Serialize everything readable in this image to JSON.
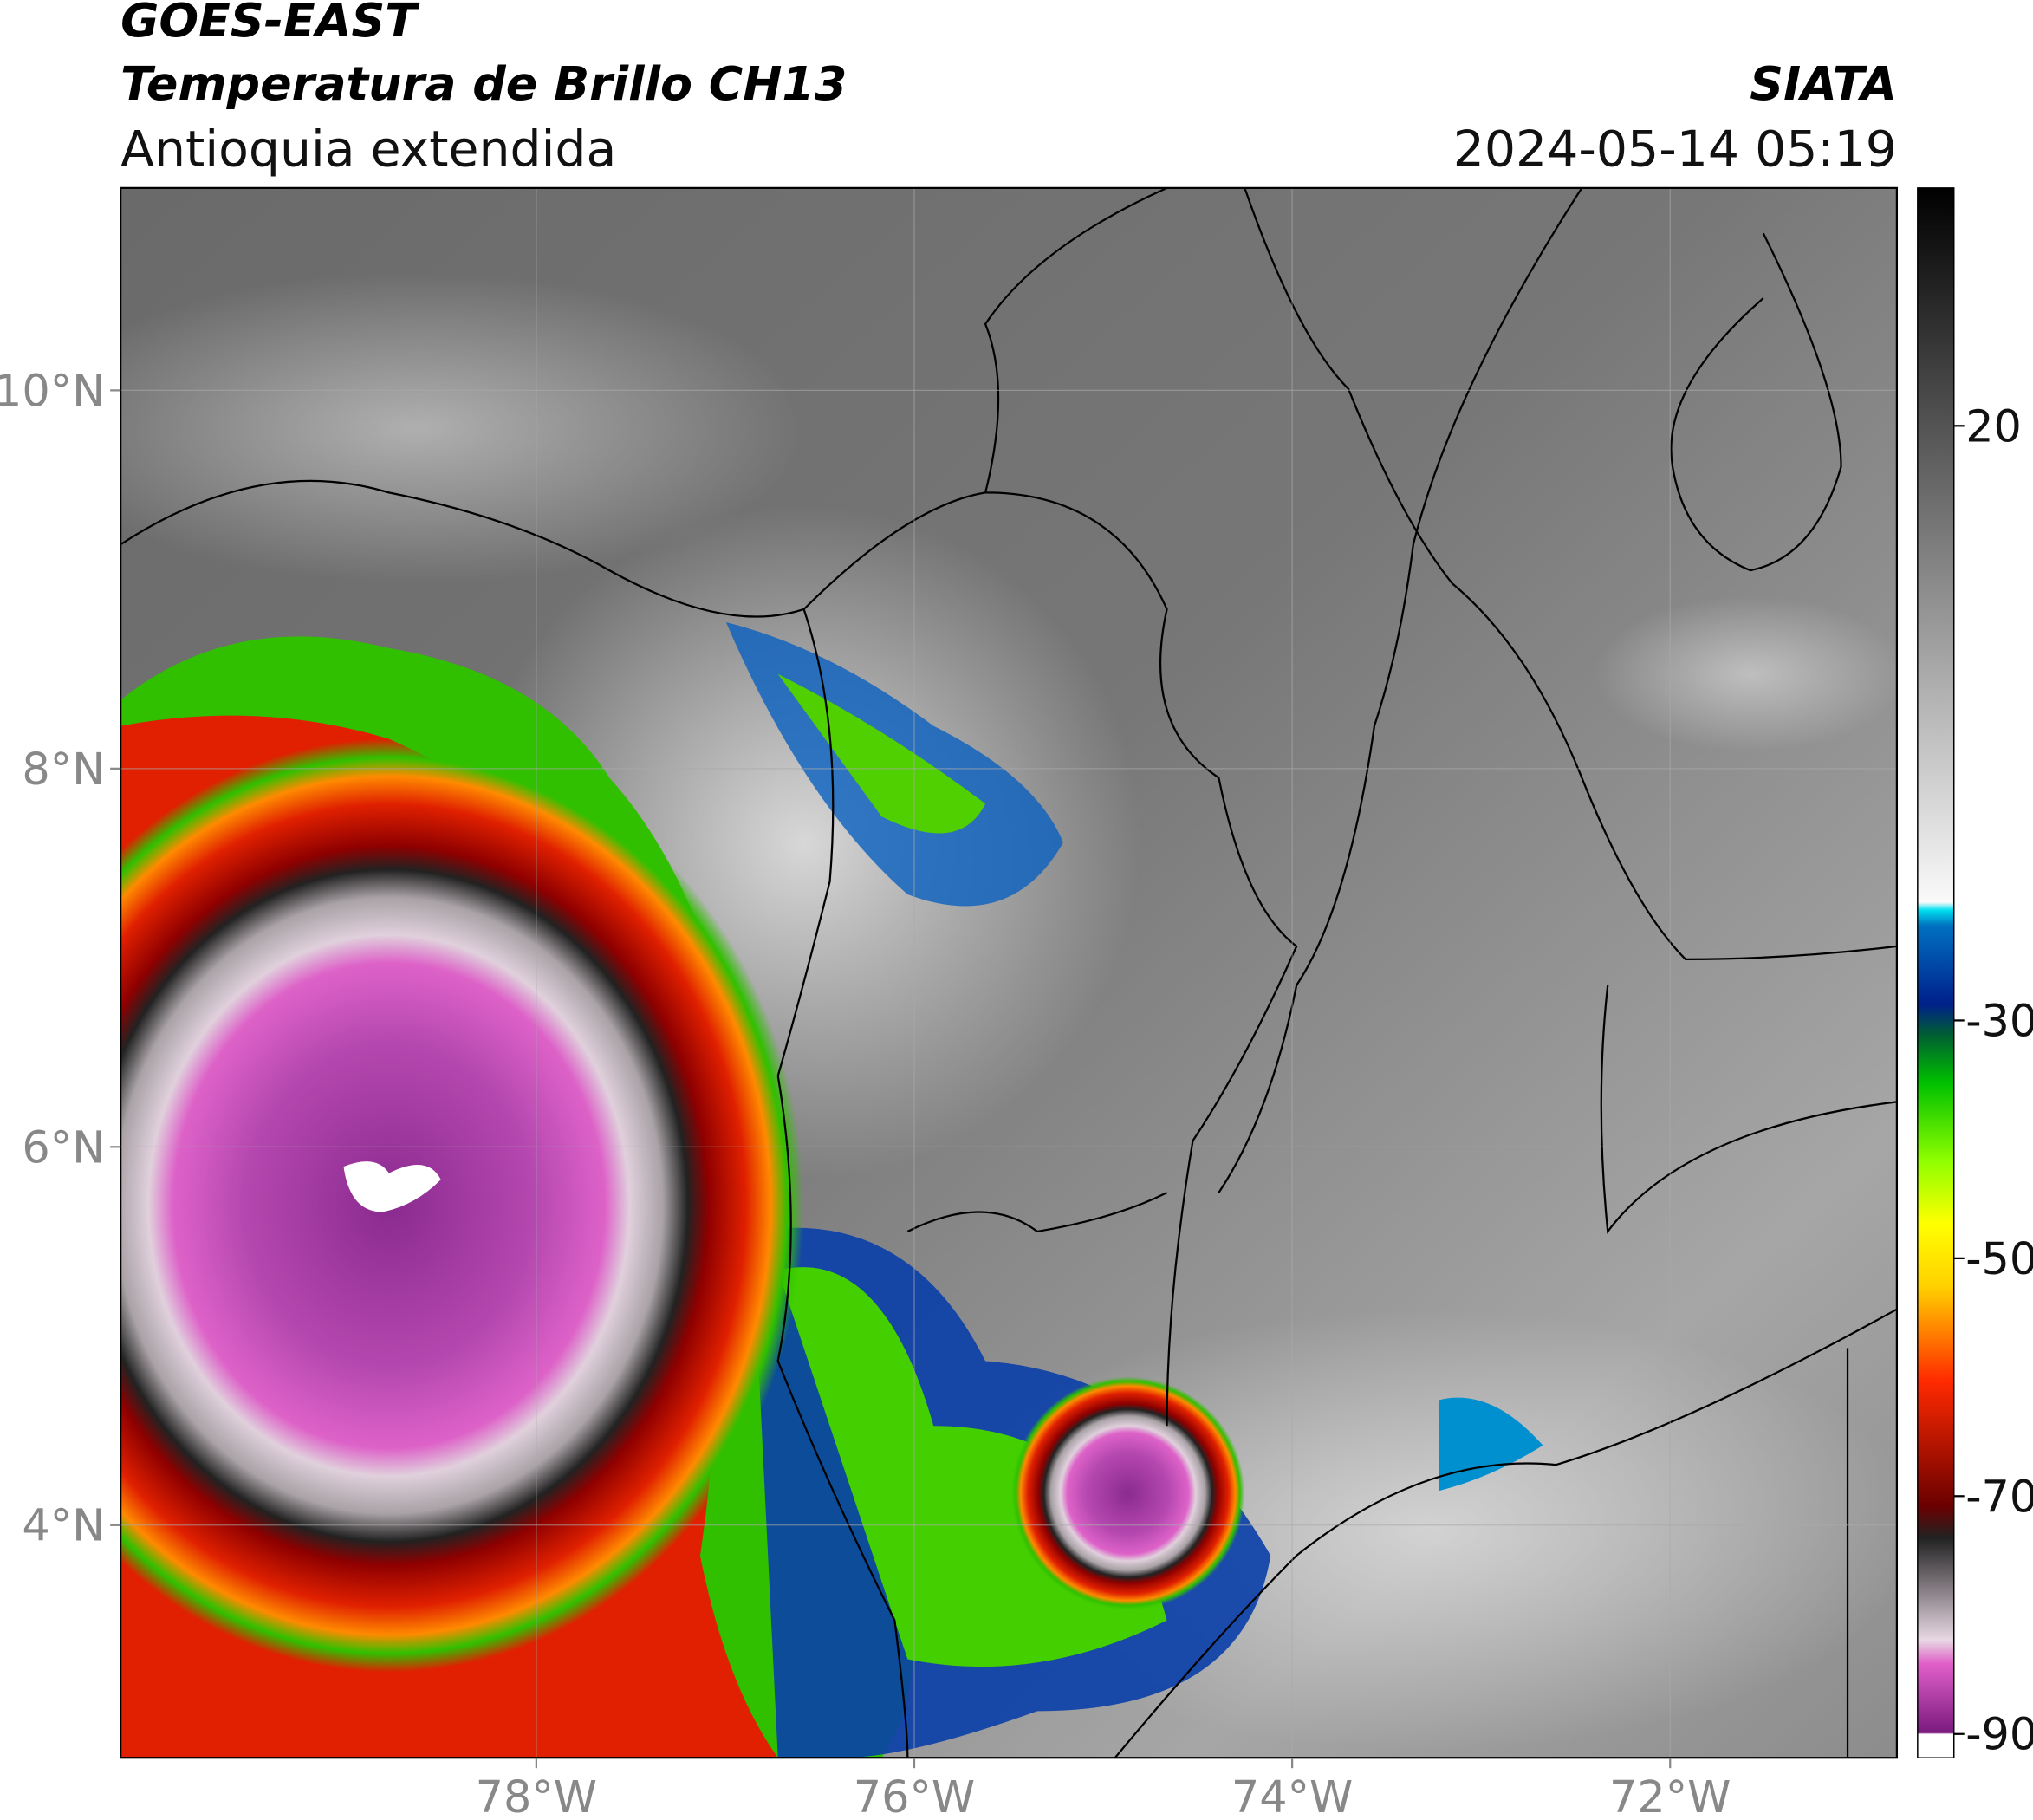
{
  "chart_data": {
    "type": "map",
    "title": "GOES-EAST",
    "subtitle": "Temperatura de Brillo CH13",
    "region": "Antioquia extendida",
    "source": "SIATA",
    "datetime": "2024-05-14 05:19",
    "xlim": [
      -80.2,
      -70.8
    ],
    "ylim": [
      2.77,
      11.07
    ],
    "xticks": [
      {
        "value": -78,
        "label": "78°W"
      },
      {
        "value": -76,
        "label": "76°W"
      },
      {
        "value": -74,
        "label": "74°W"
      },
      {
        "value": -72,
        "label": "72°W"
      }
    ],
    "yticks": [
      {
        "value": 4,
        "label": "4°N"
      },
      {
        "value": 6,
        "label": "6°N"
      },
      {
        "value": 8,
        "label": "8°N"
      },
      {
        "value": 10,
        "label": "10°N"
      }
    ],
    "colorbar": {
      "lim": [
        -92,
        40
      ],
      "ticks": [
        -90,
        -70,
        -50,
        -30,
        20
      ]
    },
    "grid": true
  }
}
